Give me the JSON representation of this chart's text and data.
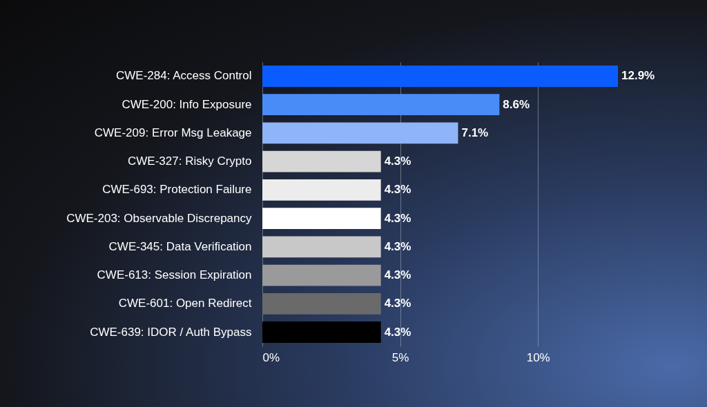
{
  "chart_data": {
    "type": "bar",
    "orientation": "horizontal",
    "categories": [
      "CWE-284: Access Control",
      "CWE-200: Info Exposure",
      "CWE-209: Error Msg Leakage",
      "CWE-327: Risky Crypto",
      "CWE-693: Protection Failure",
      "CWE-203: Observable Discrepancy",
      "CWE-345: Data Verification",
      "CWE-613: Session Expiration",
      "CWE-601: Open Redirect",
      "CWE-639: IDOR / Auth Bypass"
    ],
    "values": [
      12.9,
      8.6,
      7.1,
      4.3,
      4.3,
      4.3,
      4.3,
      4.3,
      4.3,
      4.3
    ],
    "colors": [
      "#0a5cff",
      "#4a8cf7",
      "#8fb4f7",
      "#d6d6d6",
      "#ececec",
      "#ffffff",
      "#c8c8c8",
      "#9a9a9a",
      "#6a6a6a",
      "#000000"
    ],
    "value_labels": [
      "12.9%",
      "8.6%",
      "7.1%",
      "4.3%",
      "4.3%",
      "4.3%",
      "4.3%",
      "4.3%",
      "4.3%",
      "4.3%"
    ],
    "xlim": [
      0,
      12.9
    ],
    "xticks": [
      {
        "value": 0,
        "label": "0%"
      },
      {
        "value": 5,
        "label": "5%"
      },
      {
        "value": 10,
        "label": "10%"
      }
    ],
    "grid": "x"
  }
}
